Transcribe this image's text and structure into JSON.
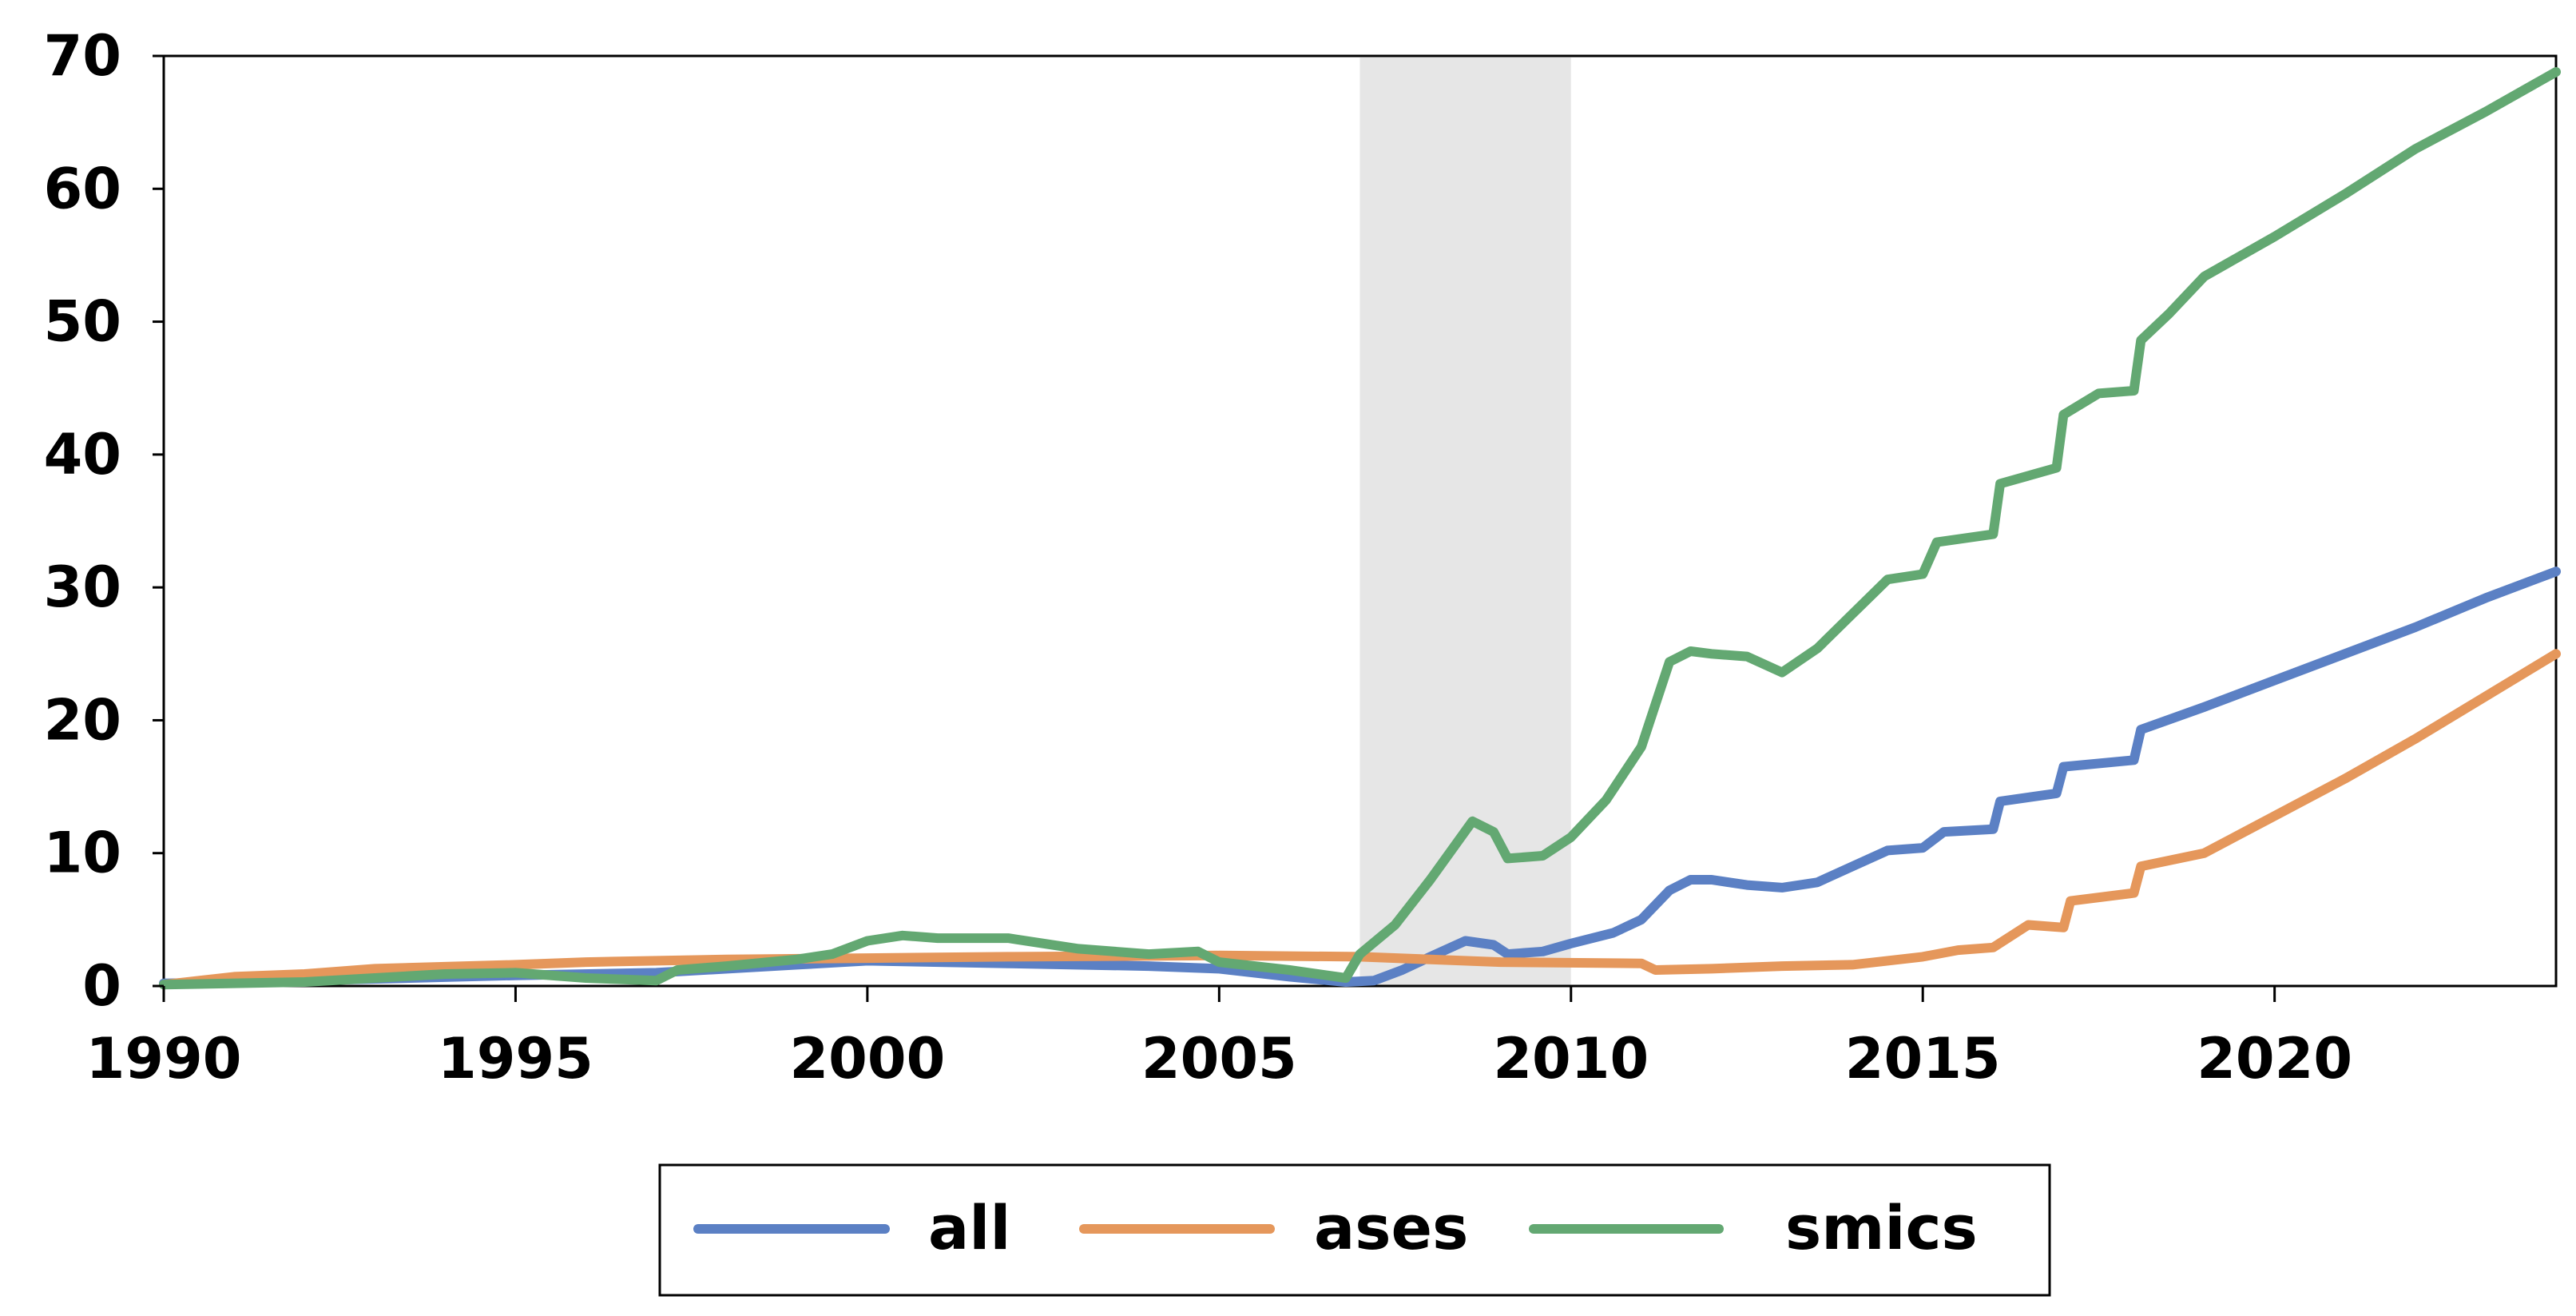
{
  "chart_data": {
    "type": "line",
    "title": "",
    "xlabel": "",
    "ylabel": "",
    "xlim": [
      1990,
      2024
    ],
    "ylim": [
      0,
      70
    ],
    "x_ticks": [
      "1990",
      "1995",
      "2000",
      "2005",
      "2010",
      "2015",
      "2020"
    ],
    "y_ticks": [
      "0",
      "10",
      "20",
      "30",
      "40",
      "50",
      "60",
      "70"
    ],
    "grid": false,
    "legend_position": "bottom",
    "shaded_regions": [
      {
        "x_start": 2007.0,
        "x_end": 2010.0,
        "color": "#e6e6e6"
      }
    ],
    "series": [
      {
        "name": "all",
        "color": "#5b80c4",
        "points": [
          [
            1990,
            0.2
          ],
          [
            1992,
            0.4
          ],
          [
            1995,
            0.8
          ],
          [
            1997,
            1.0
          ],
          [
            1999,
            1.6
          ],
          [
            2000,
            1.9
          ],
          [
            2002,
            1.7
          ],
          [
            2004,
            1.5
          ],
          [
            2005,
            1.3
          ],
          [
            2006,
            0.7
          ],
          [
            2006.8,
            0.3
          ],
          [
            2007.2,
            0.4
          ],
          [
            2007.6,
            1.2
          ],
          [
            2008,
            2.2
          ],
          [
            2008.5,
            3.4
          ],
          [
            2008.9,
            3.1
          ],
          [
            2009.1,
            2.4
          ],
          [
            2009.6,
            2.6
          ],
          [
            2010,
            3.2
          ],
          [
            2010.6,
            4.0
          ],
          [
            2011,
            5.0
          ],
          [
            2011.4,
            7.2
          ],
          [
            2011.7,
            8.0
          ],
          [
            2012,
            8.0
          ],
          [
            2012.5,
            7.6
          ],
          [
            2013,
            7.4
          ],
          [
            2013.5,
            7.8
          ],
          [
            2014,
            9.0
          ],
          [
            2014.5,
            10.2
          ],
          [
            2015,
            10.4
          ],
          [
            2015.3,
            11.6
          ],
          [
            2016,
            11.8
          ],
          [
            2016.1,
            13.9
          ],
          [
            2016.9,
            14.5
          ],
          [
            2017.0,
            16.5
          ],
          [
            2018,
            17.0
          ],
          [
            2018.1,
            19.3
          ],
          [
            2019,
            21.0
          ],
          [
            2020,
            23.0
          ],
          [
            2021,
            25.0
          ],
          [
            2022,
            27.0
          ],
          [
            2023,
            29.2
          ],
          [
            2024,
            31.2
          ]
        ]
      },
      {
        "name": "ases",
        "color": "#e5975b",
        "points": [
          [
            1990,
            0.1
          ],
          [
            1991,
            0.7
          ],
          [
            1992,
            0.9
          ],
          [
            1993,
            1.3
          ],
          [
            1995,
            1.6
          ],
          [
            1996,
            1.8
          ],
          [
            1998,
            2.0
          ],
          [
            2000,
            2.1
          ],
          [
            2002,
            2.2
          ],
          [
            2005,
            2.3
          ],
          [
            2007,
            2.2
          ],
          [
            2009,
            1.8
          ],
          [
            2011,
            1.7
          ],
          [
            2011.2,
            1.2
          ],
          [
            2012,
            1.3
          ],
          [
            2013,
            1.5
          ],
          [
            2014,
            1.6
          ],
          [
            2014.5,
            1.9
          ],
          [
            2015,
            2.2
          ],
          [
            2015.5,
            2.7
          ],
          [
            2016,
            2.9
          ],
          [
            2016.5,
            4.6
          ],
          [
            2017,
            4.4
          ],
          [
            2017.1,
            6.4
          ],
          [
            2018,
            7.0
          ],
          [
            2018.1,
            9.0
          ],
          [
            2019,
            10.0
          ],
          [
            2020,
            12.8
          ],
          [
            2021,
            15.6
          ],
          [
            2022,
            18.6
          ],
          [
            2023,
            21.8
          ],
          [
            2024,
            25.0
          ]
        ]
      },
      {
        "name": "smics",
        "color": "#63a872",
        "points": [
          [
            1990,
            0.1
          ],
          [
            1992,
            0.3
          ],
          [
            1994,
            0.9
          ],
          [
            1995,
            1.0
          ],
          [
            1996,
            0.6
          ],
          [
            1997,
            0.4
          ],
          [
            1997.3,
            1.2
          ],
          [
            1998,
            1.5
          ],
          [
            1999,
            2.0
          ],
          [
            1999.5,
            2.4
          ],
          [
            2000,
            3.4
          ],
          [
            2000.5,
            3.8
          ],
          [
            2001,
            3.6
          ],
          [
            2002,
            3.6
          ],
          [
            2003,
            2.8
          ],
          [
            2004,
            2.4
          ],
          [
            2004.7,
            2.6
          ],
          [
            2005,
            1.8
          ],
          [
            2006,
            1.2
          ],
          [
            2006.8,
            0.6
          ],
          [
            2007,
            2.4
          ],
          [
            2007.5,
            4.6
          ],
          [
            2008,
            8.0
          ],
          [
            2008.6,
            12.4
          ],
          [
            2008.9,
            11.6
          ],
          [
            2009.1,
            9.6
          ],
          [
            2009.6,
            9.8
          ],
          [
            2010,
            11.2
          ],
          [
            2010.5,
            14.0
          ],
          [
            2011,
            18.0
          ],
          [
            2011.4,
            24.4
          ],
          [
            2011.7,
            25.2
          ],
          [
            2012,
            25.0
          ],
          [
            2012.5,
            24.8
          ],
          [
            2013,
            23.6
          ],
          [
            2013.5,
            25.4
          ],
          [
            2014,
            28.0
          ],
          [
            2014.5,
            30.6
          ],
          [
            2015,
            31.0
          ],
          [
            2015.2,
            33.4
          ],
          [
            2016,
            34.0
          ],
          [
            2016.1,
            37.8
          ],
          [
            2016.9,
            39.0
          ],
          [
            2017.0,
            43.0
          ],
          [
            2017.5,
            44.6
          ],
          [
            2018,
            44.8
          ],
          [
            2018.1,
            48.6
          ],
          [
            2018.5,
            50.6
          ],
          [
            2019,
            53.4
          ],
          [
            2020,
            56.4
          ],
          [
            2021,
            59.6
          ],
          [
            2022,
            63.0
          ],
          [
            2023,
            65.8
          ],
          [
            2024,
            68.8
          ]
        ]
      }
    ]
  }
}
